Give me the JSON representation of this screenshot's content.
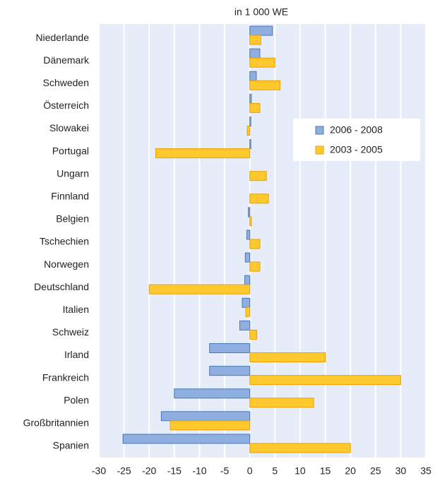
{
  "chart_data": {
    "type": "bar",
    "orientation": "horizontal",
    "title": "in 1 000 WE",
    "categories": [
      "Niederlande",
      "Dänemark",
      "Schweden",
      "Österreich",
      "Slowakei",
      "Portugal",
      "Ungarn",
      "Finnland",
      "Belgien",
      "Tschechien",
      "Norwegen",
      "Deutschland",
      "Italien",
      "Schweiz",
      "Irland",
      "Frankreich",
      "Polen",
      "Großbritannien",
      "Spanien"
    ],
    "series": [
      {
        "name": "2006 - 2008",
        "color": "#8eaee0",
        "stroke": "#4a78bd",
        "values": [
          4.5,
          2,
          1.3,
          0.3,
          0.2,
          0.2,
          0,
          0,
          -0.3,
          -0.6,
          -0.9,
          -1,
          -1.5,
          -2,
          -8,
          -8,
          -15,
          -17.6,
          -25.2
        ]
      },
      {
        "name": "2003 - 2005",
        "color": "#ffc82c",
        "stroke": "#eba000",
        "values": [
          2.2,
          5,
          6,
          2,
          -0.5,
          -18.7,
          3.3,
          3.7,
          0.3,
          2,
          2,
          -20,
          -0.8,
          1.4,
          15,
          30,
          12.7,
          -15.8,
          20
        ]
      }
    ],
    "xlim": [
      -30,
      35
    ],
    "xticks": [
      -30,
      -25,
      -20,
      -15,
      -10,
      -5,
      0,
      5,
      10,
      15,
      20,
      25,
      30,
      35
    ],
    "grid": true,
    "background": "#e6ecf8"
  }
}
